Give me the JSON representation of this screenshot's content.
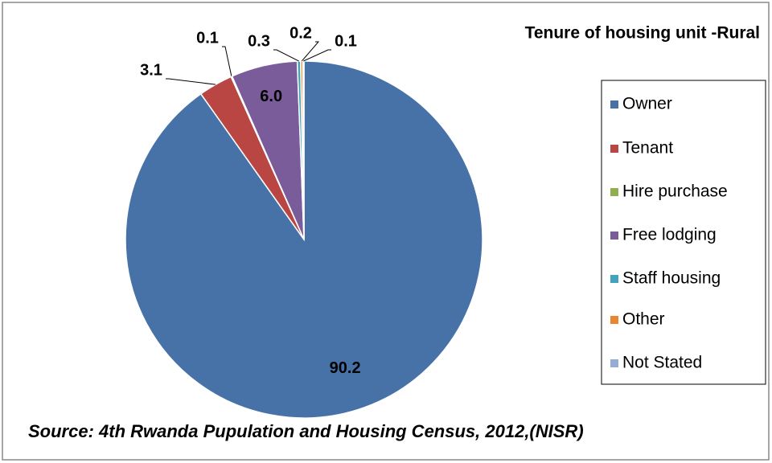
{
  "chart_data": {
    "type": "pie",
    "title": "Tenure of housing unit -Rural",
    "categories": [
      "Owner",
      "Tenant",
      "Hire purchase",
      "Free lodging",
      "Staff housing",
      "Other",
      "Not Stated"
    ],
    "values": [
      90.2,
      3.1,
      0.1,
      6.0,
      0.3,
      0.2,
      0.1
    ],
    "value_labels": [
      "90.2",
      "3.1",
      "0.1",
      "6.0",
      "0.3",
      "0.2",
      "0.1"
    ],
    "colors": [
      "#4672a8",
      "#b94643",
      "#90b050",
      "#7a5c9a",
      "#3fa4bc",
      "#e8872f",
      "#94acd6"
    ],
    "legend": "right",
    "source": "Source: 4th Rwanda Pupulation and Housing Census, 2012,(NISR)"
  }
}
